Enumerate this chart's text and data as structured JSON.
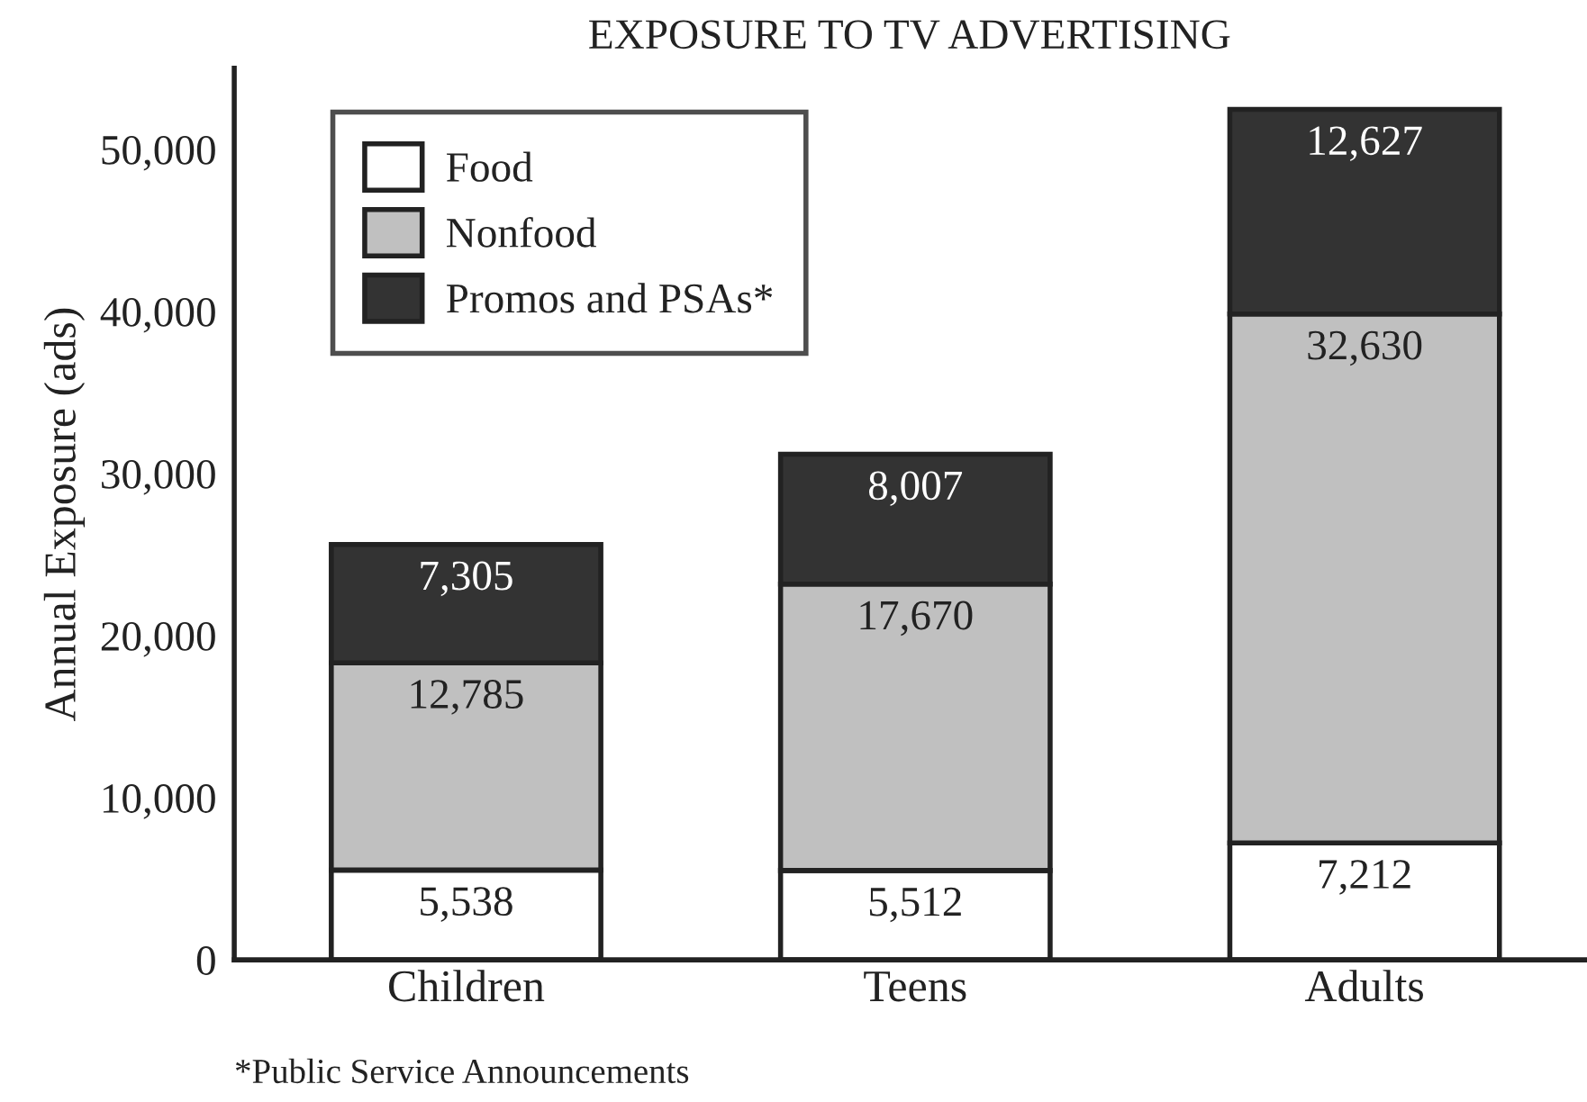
{
  "chart_data": {
    "type": "bar",
    "stacked": true,
    "title": "EXPOSURE TO TV ADVERTISING",
    "ylabel": "Annual Exposure (ads)",
    "categories": [
      "Children",
      "Teens",
      "Adults"
    ],
    "series": [
      {
        "name": "Food",
        "color": "#ffffff",
        "values": [
          5538,
          5512,
          7212
        ],
        "value_labels": [
          "5,538",
          "5,512",
          "7,212"
        ]
      },
      {
        "name": "Nonfood",
        "color": "#c0c0c0",
        "values": [
          12785,
          17670,
          32630
        ],
        "value_labels": [
          "12,785",
          "17,670",
          "32,630"
        ]
      },
      {
        "name": "Promos and PSAs*",
        "color": "#333333",
        "values": [
          7305,
          8007,
          12627
        ],
        "value_labels": [
          "7,305",
          "8,007",
          "12,627"
        ]
      }
    ],
    "ylim": [
      0,
      55000
    ],
    "yticks": [
      0,
      {
        "value": 10000,
        "label": "10,000"
      },
      {
        "value": 20000,
        "label": "20,000"
      },
      {
        "value": 30000,
        "label": "30,000"
      },
      {
        "value": 40000,
        "label": "40,000"
      },
      {
        "value": 50000,
        "label": "50,000"
      }
    ],
    "legend": "top left",
    "grid": false,
    "annotations": [
      "*Public Service Announcements"
    ]
  }
}
